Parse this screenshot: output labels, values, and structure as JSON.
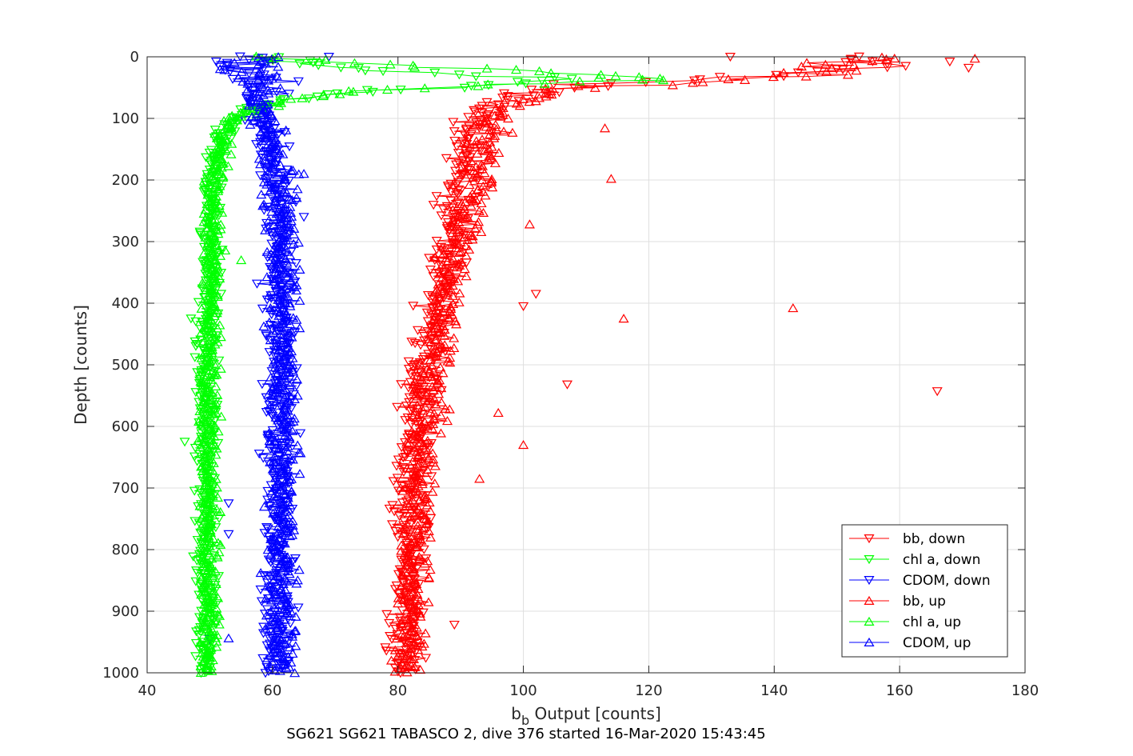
{
  "chart_data": {
    "type": "scatter",
    "xlabel_main": "b",
    "xlabel_sub": "b",
    "xlabel_rest": " Output [counts]",
    "ylabel": "Depth [counts]",
    "caption": "SG621 SG621 TABASCO 2, dive 376 started 16-Mar-2020 15:43:45",
    "xlim": [
      40,
      180
    ],
    "ylim": [
      0,
      1000
    ],
    "y_reversed": true,
    "grid": true,
    "xticks": [
      "40",
      "60",
      "80",
      "100",
      "120",
      "140",
      "160",
      "180"
    ],
    "yticks": [
      "0",
      "100",
      "200",
      "300",
      "400",
      "500",
      "600",
      "700",
      "800",
      "900",
      "1000"
    ],
    "legend_position": "bottom-right",
    "series": [
      {
        "name": "bb, down",
        "color": "#ff0000",
        "marker": "triangle-down",
        "profile": [
          [
            0,
            150
          ],
          [
            8,
            158
          ],
          [
            20,
            152
          ],
          [
            30,
            140
          ],
          [
            38,
            125
          ],
          [
            45,
            108
          ],
          [
            55,
            102
          ],
          [
            70,
            97
          ],
          [
            90,
            93
          ],
          [
            120,
            92
          ],
          [
            160,
            91
          ],
          [
            200,
            90
          ],
          [
            260,
            89
          ],
          [
            320,
            87.5
          ],
          [
            400,
            86
          ],
          [
            500,
            84
          ],
          [
            600,
            83
          ],
          [
            700,
            82
          ],
          [
            800,
            81.5
          ],
          [
            900,
            81.5
          ],
          [
            1000,
            81
          ]
        ],
        "spread": 2.0,
        "outliers": [
          [
            133,
            0
          ],
          [
            168,
            8
          ],
          [
            171,
            18
          ],
          [
            100,
            405
          ],
          [
            102,
            385
          ],
          [
            107,
            532
          ],
          [
            166,
            543
          ],
          [
            89,
            922
          ]
        ]
      },
      {
        "name": "chl a, down",
        "color": "#00ff00",
        "marker": "triangle-down",
        "profile": [
          [
            0,
            58
          ],
          [
            10,
            63
          ],
          [
            25,
            80
          ],
          [
            35,
            105
          ],
          [
            42,
            100
          ],
          [
            55,
            78
          ],
          [
            70,
            62
          ],
          [
            90,
            55
          ],
          [
            110,
            53
          ],
          [
            140,
            51.5
          ],
          [
            200,
            50.5
          ],
          [
            300,
            50
          ],
          [
            500,
            49.5
          ],
          [
            700,
            49.5
          ],
          [
            1000,
            49.5
          ]
        ],
        "spread": 1.2,
        "outliers": [
          [
            46,
            625
          ],
          [
            66,
            6
          ],
          [
            48,
            512
          ],
          [
            47,
            425
          ]
        ]
      },
      {
        "name": "CDOM, down",
        "color": "#0000ff",
        "marker": "triangle-down",
        "profile": [
          [
            0,
            56
          ],
          [
            20,
            55.5
          ],
          [
            50,
            56.5
          ],
          [
            80,
            57.5
          ],
          [
            100,
            58.5
          ],
          [
            150,
            60
          ],
          [
            200,
            60.5
          ],
          [
            300,
            61
          ],
          [
            400,
            61
          ],
          [
            500,
            61
          ],
          [
            600,
            61
          ],
          [
            700,
            61
          ],
          [
            800,
            61
          ],
          [
            900,
            61
          ],
          [
            1000,
            61
          ]
        ],
        "spread": 1.8,
        "outliers": [
          [
            69,
            0
          ],
          [
            65,
            260
          ],
          [
            53,
            725
          ],
          [
            53,
            775
          ],
          [
            50,
            945
          ]
        ]
      },
      {
        "name": "bb, up",
        "color": "#ff0000",
        "marker": "triangle-up",
        "profile": [
          [
            0,
            155
          ],
          [
            12,
            150
          ],
          [
            25,
            148
          ],
          [
            38,
            135
          ],
          [
            50,
            110
          ],
          [
            65,
            102
          ],
          [
            80,
            98
          ],
          [
            100,
            95
          ],
          [
            150,
            94
          ],
          [
            200,
            93
          ],
          [
            260,
            91
          ],
          [
            320,
            89.5
          ],
          [
            400,
            87.5
          ],
          [
            500,
            86
          ],
          [
            600,
            84.5
          ],
          [
            700,
            83.5
          ],
          [
            800,
            83
          ],
          [
            900,
            82.5
          ],
          [
            1000,
            82
          ]
        ],
        "spread": 2.0,
        "outliers": [
          [
            172,
            3
          ],
          [
            113,
            116
          ],
          [
            114,
            198
          ],
          [
            143,
            408
          ],
          [
            116,
            425
          ],
          [
            101,
            272
          ],
          [
            100,
            630
          ],
          [
            96,
            578
          ],
          [
            93,
            685
          ]
        ]
      },
      {
        "name": "chl a, up",
        "color": "#00ff00",
        "marker": "triangle-up",
        "profile": [
          [
            0,
            60
          ],
          [
            10,
            72
          ],
          [
            20,
            95
          ],
          [
            30,
            113
          ],
          [
            38,
            120
          ],
          [
            45,
            95
          ],
          [
            55,
            75
          ],
          [
            70,
            62
          ],
          [
            85,
            57
          ],
          [
            100,
            54
          ],
          [
            130,
            52
          ],
          [
            200,
            51
          ],
          [
            300,
            50.5
          ],
          [
            500,
            50
          ],
          [
            700,
            50
          ],
          [
            1000,
            50
          ]
        ],
        "spread": 1.2,
        "outliers": [
          [
            119,
            37
          ],
          [
            112,
            34
          ],
          [
            55,
            330
          ]
        ]
      },
      {
        "name": "CDOM, up",
        "color": "#0000ff",
        "marker": "triangle-up",
        "profile": [
          [
            0,
            57
          ],
          [
            20,
            57
          ],
          [
            50,
            57.5
          ],
          [
            80,
            58
          ],
          [
            100,
            59
          ],
          [
            150,
            60
          ],
          [
            200,
            61
          ],
          [
            300,
            61.5
          ],
          [
            400,
            61.5
          ],
          [
            500,
            61.5
          ],
          [
            600,
            61.5
          ],
          [
            700,
            61.5
          ],
          [
            800,
            61.5
          ],
          [
            900,
            61.5
          ],
          [
            1000,
            61.5
          ]
        ],
        "spread": 1.8,
        "outliers": [
          [
            65,
            190
          ],
          [
            64,
            550
          ],
          [
            53,
            944
          ]
        ]
      }
    ]
  }
}
